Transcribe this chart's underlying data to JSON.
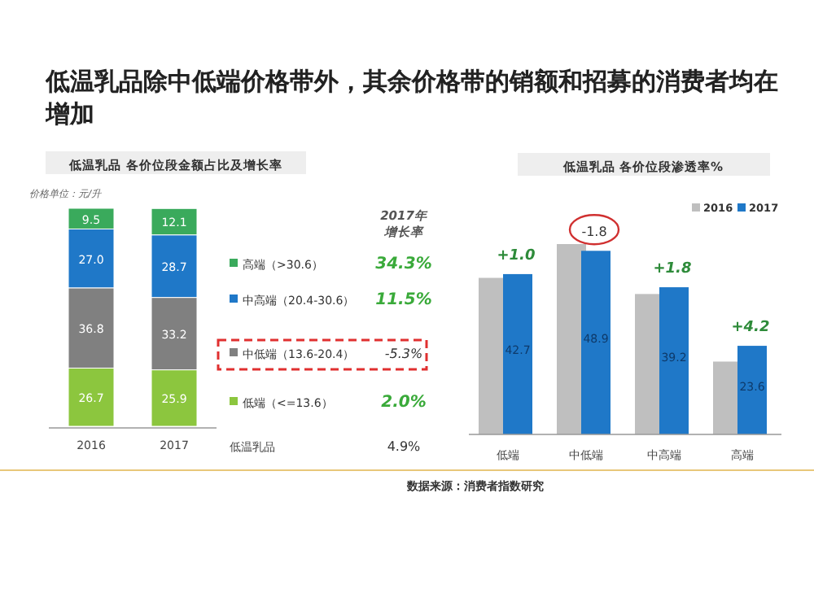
{
  "chart_data": [
    {
      "type": "bar",
      "stacked": true,
      "title": "低温乳品除中低端价格带外，其余价格带的销额和招募的消费者均在增加",
      "subtitle": "低温乳品  各价位段金额占比及增长率",
      "categories": [
        "2016",
        "2017"
      ],
      "series": [
        {
          "name": "低端（<=13.6）",
          "color": "#8cc63e",
          "values": [
            26.7,
            25.9
          ],
          "value_labels": [
            "26.7",
            "25.9"
          ]
        },
        {
          "name": "中低端（13.6-20.4）",
          "color": "#808080",
          "values": [
            36.8,
            33.2
          ],
          "value_labels": [
            "36.8",
            "33.2"
          ]
        },
        {
          "name": "中高端（20.4-30.6）",
          "color": "#1f78c8",
          "values": [
            27.0,
            28.7
          ],
          "value_labels": [
            "27.0",
            "28.7"
          ]
        },
        {
          "name": "高端（>30.6）",
          "color": "#3aaa5c",
          "values": [
            9.5,
            12.1
          ],
          "value_labels": [
            "9.5",
            "12.1"
          ]
        }
      ],
      "legend": "right",
      "annotations": [
        "价格单位：元/升",
        "2017年",
        "增长率",
        "34.3%",
        "11.5%",
        "-5.3%",
        "2.0%",
        "低温乳品",
        "4.9%"
      ]
    },
    {
      "type": "bar",
      "title": "低温乳品  各价位段渗透率%",
      "categories": [
        "低端",
        "中低端",
        "中高端",
        "高端"
      ],
      "series": [
        {
          "name": "2016",
          "color": "#bfbfbf",
          "values": [
            41.7,
            50.7,
            37.4,
            19.4
          ]
        },
        {
          "name": "2017",
          "color": "#1f78c8",
          "values": [
            42.7,
            48.9,
            39.2,
            23.6
          ],
          "value_labels": [
            "42.7",
            "48.9",
            "39.2",
            "23.6"
          ]
        }
      ],
      "legend": "top right",
      "annotations": [
        {
          "text": "+1.0",
          "x": "低端",
          "y": 42.7
        },
        {
          "text": "-1.8",
          "x": "中低端",
          "y": 48.9
        },
        {
          "text": "+1.8",
          "x": "中高端",
          "y": 39.2
        },
        {
          "text": "+4.2",
          "x": "高端",
          "y": 23.6
        },
        "数据来源：消费者指数研究"
      ]
    }
  ]
}
